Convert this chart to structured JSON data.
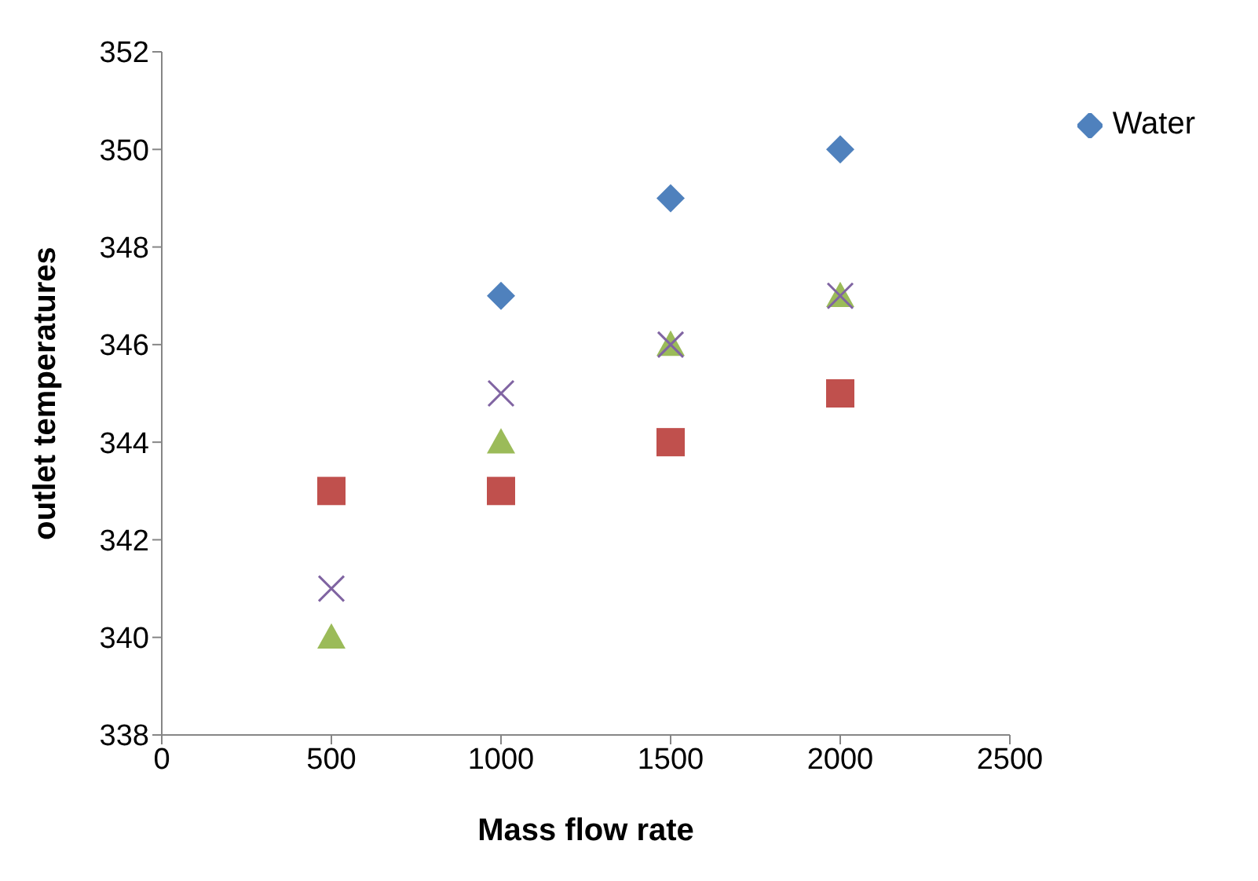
{
  "chart_data": {
    "type": "scatter",
    "xlabel": "Mass flow rate",
    "ylabel": "outlet temperatures",
    "x": [
      500,
      1000,
      1500,
      2000
    ],
    "series": [
      {
        "name": "Water",
        "color": "#4f81bd",
        "marker": "diamond",
        "values": [
          null,
          347,
          349,
          350
        ]
      },
      {
        "color": "#c0504d",
        "marker": "square",
        "values": [
          343,
          343,
          344,
          345
        ]
      },
      {
        "color": "#9bbb59",
        "marker": "triangle",
        "values": [
          340,
          344,
          346,
          347
        ]
      },
      {
        "color": "#8064a2",
        "marker": "cross",
        "values": [
          341,
          345,
          346,
          347
        ]
      }
    ],
    "xlim": [
      0,
      2500
    ],
    "xticks": [
      0,
      500,
      1000,
      1500,
      2000,
      2500
    ],
    "ylim": [
      338,
      352
    ],
    "yticks": [
      338,
      340,
      342,
      344,
      346,
      348,
      350,
      352
    ],
    "grid": false,
    "legend": "top right"
  }
}
